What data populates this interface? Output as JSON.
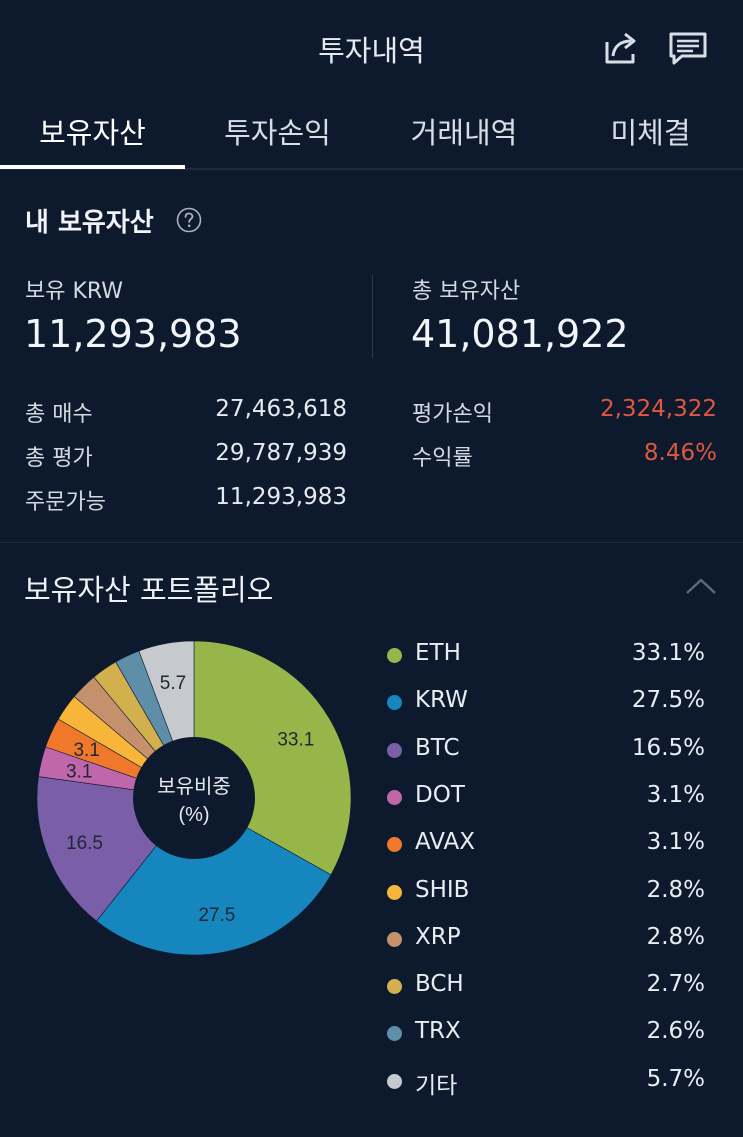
{
  "header": {
    "title": "투자내역",
    "share_icon": "share-icon",
    "chat_icon": "chat-icon"
  },
  "tabs": [
    {
      "label": "보유자산",
      "active": true
    },
    {
      "label": "투자손익",
      "active": false
    },
    {
      "label": "거래내역",
      "active": false
    },
    {
      "label": "미체결",
      "active": false
    }
  ],
  "holdings": {
    "title": "내 보유자산",
    "help_icon": "question-circle-icon",
    "krw_label": "보유 KRW",
    "krw_value": "11,293,983",
    "total_label": "총 보유자산",
    "total_value": "41,081,922",
    "rows_left": [
      {
        "label": "총 매수",
        "value": "27,463,618"
      },
      {
        "label": "총 평가",
        "value": "29,787,939"
      },
      {
        "label": "주문가능",
        "value": "11,293,983"
      }
    ],
    "rows_right": [
      {
        "label": "평가손익",
        "value": "2,324,322"
      },
      {
        "label": "수익률",
        "value": "8.46%"
      }
    ]
  },
  "portfolio": {
    "title": "보유자산 포트폴리오",
    "collapse_icon": "chevron-up-icon",
    "center_label_line1": "보유비중",
    "center_label_line2": "(%)"
  },
  "chart_data": {
    "type": "pie",
    "donut": true,
    "categories": [
      "ETH",
      "KRW",
      "BTC",
      "DOT",
      "AVAX",
      "SHIB",
      "XRP",
      "BCH",
      "TRX",
      "기타"
    ],
    "values": [
      33.1,
      27.5,
      16.5,
      3.1,
      3.1,
      2.8,
      2.8,
      2.7,
      2.6,
      5.7
    ],
    "legend_values": [
      "33.1%",
      "27.5%",
      "16.5%",
      "3.1%",
      "3.1%",
      "2.8%",
      "2.8%",
      "2.7%",
      "2.6%",
      "5.7%"
    ],
    "slice_labels": [
      "33.1",
      "27.5",
      "16.5",
      "3.1",
      "3.1",
      "",
      "",
      "",
      "",
      "5.7"
    ],
    "colors": [
      "#97b64a",
      "#1686bf",
      "#7a5ea8",
      "#c066ab",
      "#f0782b",
      "#f7b539",
      "#c5906c",
      "#d2b04e",
      "#5f8ea8",
      "#c6c9ce"
    ],
    "legend_placement": "right"
  }
}
